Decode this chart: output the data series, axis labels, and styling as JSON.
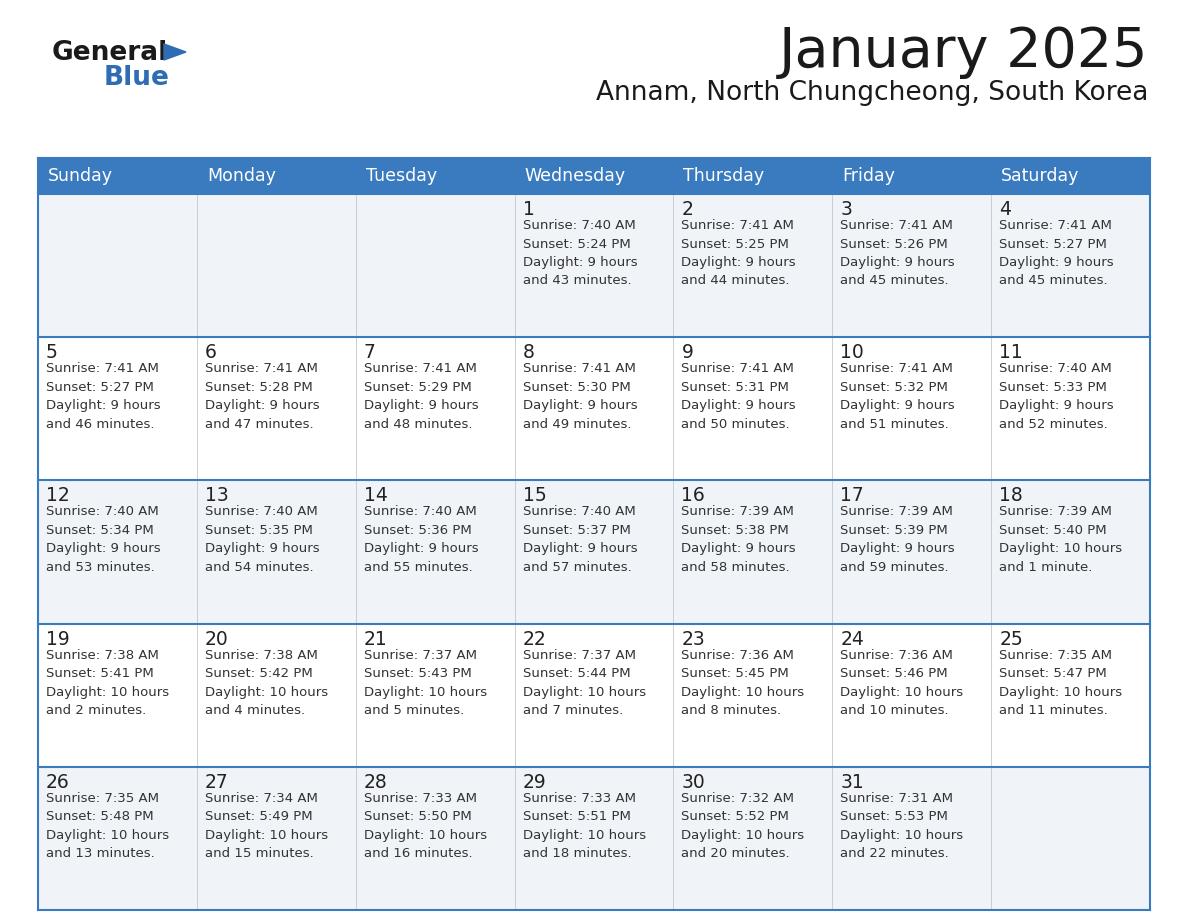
{
  "title": "January 2025",
  "subtitle": "Annam, North Chungcheong, South Korea",
  "header_bg_color": "#3a7bbf",
  "header_text_color": "#ffffff",
  "cell_bg_even": "#f0f4f8",
  "cell_bg_odd": "#ffffff",
  "grid_line_color": "#3a7bbf",
  "days_of_week": [
    "Sunday",
    "Monday",
    "Tuesday",
    "Wednesday",
    "Thursday",
    "Friday",
    "Saturday"
  ],
  "title_color": "#1a1a1a",
  "subtitle_color": "#1a1a1a",
  "day_number_color": "#222222",
  "cell_text_color": "#333333",
  "logo_general_color": "#1a1a1a",
  "logo_blue_color": "#2e6db4",
  "logo_triangle_color": "#2e6db4",
  "calendar": [
    [
      {
        "day": "",
        "info": ""
      },
      {
        "day": "",
        "info": ""
      },
      {
        "day": "",
        "info": ""
      },
      {
        "day": "1",
        "info": "Sunrise: 7:40 AM\nSunset: 5:24 PM\nDaylight: 9 hours\nand 43 minutes."
      },
      {
        "day": "2",
        "info": "Sunrise: 7:41 AM\nSunset: 5:25 PM\nDaylight: 9 hours\nand 44 minutes."
      },
      {
        "day": "3",
        "info": "Sunrise: 7:41 AM\nSunset: 5:26 PM\nDaylight: 9 hours\nand 45 minutes."
      },
      {
        "day": "4",
        "info": "Sunrise: 7:41 AM\nSunset: 5:27 PM\nDaylight: 9 hours\nand 45 minutes."
      }
    ],
    [
      {
        "day": "5",
        "info": "Sunrise: 7:41 AM\nSunset: 5:27 PM\nDaylight: 9 hours\nand 46 minutes."
      },
      {
        "day": "6",
        "info": "Sunrise: 7:41 AM\nSunset: 5:28 PM\nDaylight: 9 hours\nand 47 minutes."
      },
      {
        "day": "7",
        "info": "Sunrise: 7:41 AM\nSunset: 5:29 PM\nDaylight: 9 hours\nand 48 minutes."
      },
      {
        "day": "8",
        "info": "Sunrise: 7:41 AM\nSunset: 5:30 PM\nDaylight: 9 hours\nand 49 minutes."
      },
      {
        "day": "9",
        "info": "Sunrise: 7:41 AM\nSunset: 5:31 PM\nDaylight: 9 hours\nand 50 minutes."
      },
      {
        "day": "10",
        "info": "Sunrise: 7:41 AM\nSunset: 5:32 PM\nDaylight: 9 hours\nand 51 minutes."
      },
      {
        "day": "11",
        "info": "Sunrise: 7:40 AM\nSunset: 5:33 PM\nDaylight: 9 hours\nand 52 minutes."
      }
    ],
    [
      {
        "day": "12",
        "info": "Sunrise: 7:40 AM\nSunset: 5:34 PM\nDaylight: 9 hours\nand 53 minutes."
      },
      {
        "day": "13",
        "info": "Sunrise: 7:40 AM\nSunset: 5:35 PM\nDaylight: 9 hours\nand 54 minutes."
      },
      {
        "day": "14",
        "info": "Sunrise: 7:40 AM\nSunset: 5:36 PM\nDaylight: 9 hours\nand 55 minutes."
      },
      {
        "day": "15",
        "info": "Sunrise: 7:40 AM\nSunset: 5:37 PM\nDaylight: 9 hours\nand 57 minutes."
      },
      {
        "day": "16",
        "info": "Sunrise: 7:39 AM\nSunset: 5:38 PM\nDaylight: 9 hours\nand 58 minutes."
      },
      {
        "day": "17",
        "info": "Sunrise: 7:39 AM\nSunset: 5:39 PM\nDaylight: 9 hours\nand 59 minutes."
      },
      {
        "day": "18",
        "info": "Sunrise: 7:39 AM\nSunset: 5:40 PM\nDaylight: 10 hours\nand 1 minute."
      }
    ],
    [
      {
        "day": "19",
        "info": "Sunrise: 7:38 AM\nSunset: 5:41 PM\nDaylight: 10 hours\nand 2 minutes."
      },
      {
        "day": "20",
        "info": "Sunrise: 7:38 AM\nSunset: 5:42 PM\nDaylight: 10 hours\nand 4 minutes."
      },
      {
        "day": "21",
        "info": "Sunrise: 7:37 AM\nSunset: 5:43 PM\nDaylight: 10 hours\nand 5 minutes."
      },
      {
        "day": "22",
        "info": "Sunrise: 7:37 AM\nSunset: 5:44 PM\nDaylight: 10 hours\nand 7 minutes."
      },
      {
        "day": "23",
        "info": "Sunrise: 7:36 AM\nSunset: 5:45 PM\nDaylight: 10 hours\nand 8 minutes."
      },
      {
        "day": "24",
        "info": "Sunrise: 7:36 AM\nSunset: 5:46 PM\nDaylight: 10 hours\nand 10 minutes."
      },
      {
        "day": "25",
        "info": "Sunrise: 7:35 AM\nSunset: 5:47 PM\nDaylight: 10 hours\nand 11 minutes."
      }
    ],
    [
      {
        "day": "26",
        "info": "Sunrise: 7:35 AM\nSunset: 5:48 PM\nDaylight: 10 hours\nand 13 minutes."
      },
      {
        "day": "27",
        "info": "Sunrise: 7:34 AM\nSunset: 5:49 PM\nDaylight: 10 hours\nand 15 minutes."
      },
      {
        "day": "28",
        "info": "Sunrise: 7:33 AM\nSunset: 5:50 PM\nDaylight: 10 hours\nand 16 minutes."
      },
      {
        "day": "29",
        "info": "Sunrise: 7:33 AM\nSunset: 5:51 PM\nDaylight: 10 hours\nand 18 minutes."
      },
      {
        "day": "30",
        "info": "Sunrise: 7:32 AM\nSunset: 5:52 PM\nDaylight: 10 hours\nand 20 minutes."
      },
      {
        "day": "31",
        "info": "Sunrise: 7:31 AM\nSunset: 5:53 PM\nDaylight: 10 hours\nand 22 minutes."
      },
      {
        "day": "",
        "info": ""
      }
    ]
  ]
}
